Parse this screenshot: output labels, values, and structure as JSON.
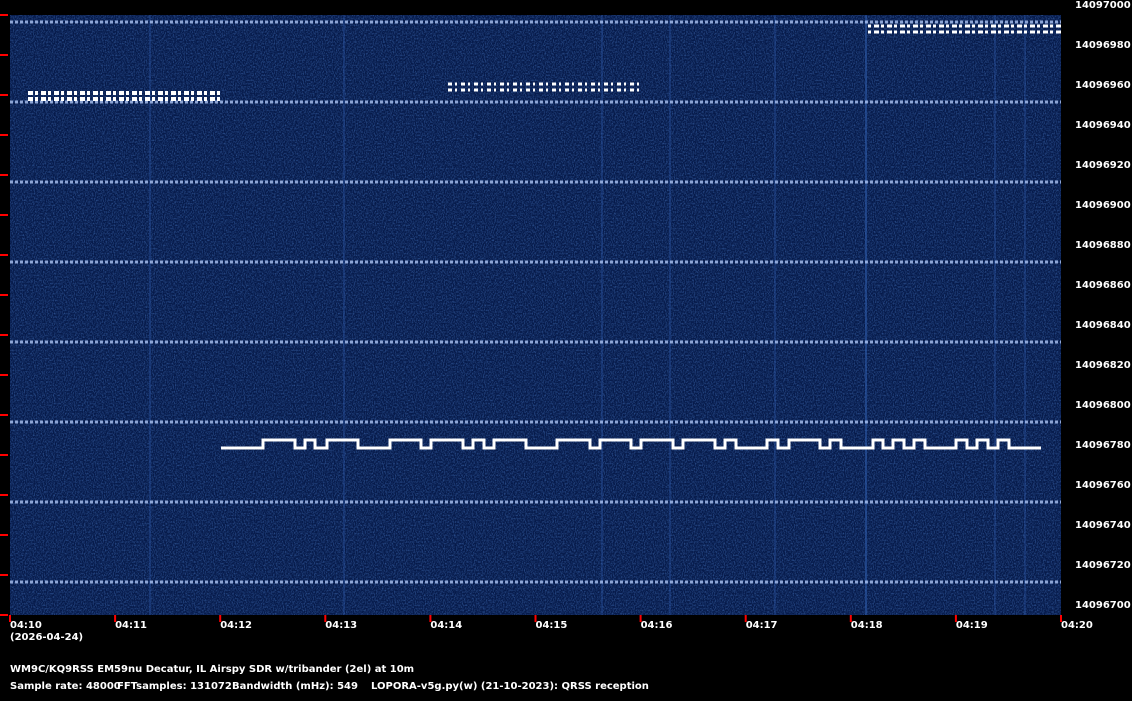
{
  "chart_data": {
    "type": "spectrogram",
    "date": "(2026-04-24)",
    "categories": [
      "04:10",
      "04:11",
      "04:12",
      "04:13",
      "04:14",
      "04:15",
      "04:16",
      "04:17",
      "04:18",
      "04:19",
      "04:20"
    ],
    "ylim": [
      14096700,
      14097000
    ],
    "yticks": [
      14096700,
      14096720,
      14096740,
      14096760,
      14096780,
      14096800,
      14096820,
      14096840,
      14096860,
      14096880,
      14096900,
      14096920,
      14096940,
      14096960,
      14096980,
      14097000
    ],
    "tick_color": "#ff0000",
    "footer": {
      "station": "WM9C/KQ9RSS EM59nu Decatur, IL  Airspy SDR w/tribander (2el) at 10m",
      "sample_rate": "Sample rate: 48000",
      "fft_samples": "FFTsamples: 131072",
      "bandwidth": "Bandwidth (mHz): 549",
      "software": "LOPORA-v5g.py(w) (21-10-2023): QRSS reception"
    }
  }
}
